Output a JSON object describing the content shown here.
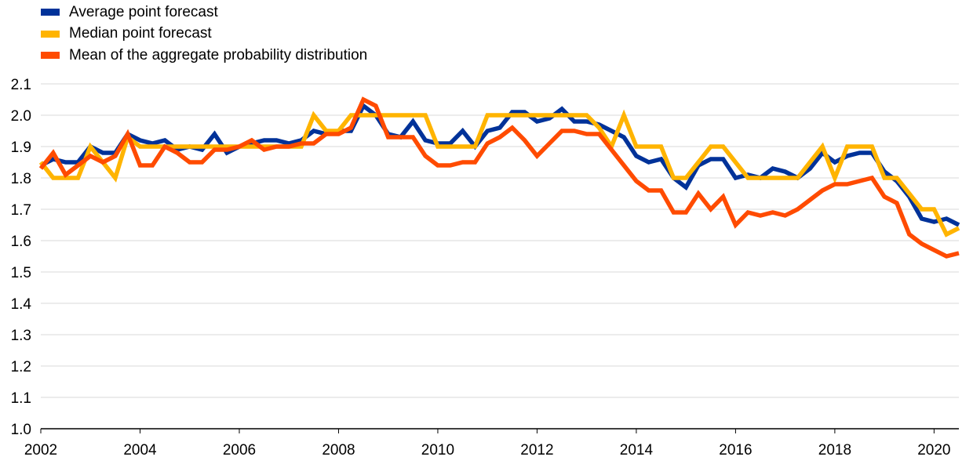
{
  "chart_data": {
    "type": "line",
    "title": "",
    "xlabel": "",
    "ylabel": "",
    "xlim": [
      2002,
      2020.5
    ],
    "ylim": [
      1.0,
      2.1
    ],
    "x_ticks": [
      "2002",
      "2004",
      "2006",
      "2008",
      "2010",
      "2012",
      "2014",
      "2016",
      "2018",
      "2020"
    ],
    "y_ticks": [
      "1.0",
      "1.1",
      "1.2",
      "1.3",
      "1.4",
      "1.5",
      "1.6",
      "1.7",
      "1.8",
      "1.9",
      "2.0",
      "2.1"
    ],
    "grid": "horizontal",
    "legend_position": "top-left",
    "x": [
      2002.0,
      2002.25,
      2002.5,
      2002.75,
      2003.0,
      2003.25,
      2003.5,
      2003.75,
      2004.0,
      2004.25,
      2004.5,
      2004.75,
      2005.0,
      2005.25,
      2005.5,
      2005.75,
      2006.0,
      2006.25,
      2006.5,
      2006.75,
      2007.0,
      2007.25,
      2007.5,
      2007.75,
      2008.0,
      2008.25,
      2008.5,
      2008.75,
      2009.0,
      2009.25,
      2009.5,
      2009.75,
      2010.0,
      2010.25,
      2010.5,
      2010.75,
      2011.0,
      2011.25,
      2011.5,
      2011.75,
      2012.0,
      2012.25,
      2012.5,
      2012.75,
      2013.0,
      2013.25,
      2013.5,
      2013.75,
      2014.0,
      2014.25,
      2014.5,
      2014.75,
      2015.0,
      2015.25,
      2015.5,
      2015.75,
      2016.0,
      2016.25,
      2016.5,
      2016.75,
      2017.0,
      2017.25,
      2017.5,
      2017.75,
      2018.0,
      2018.25,
      2018.5,
      2018.75,
      2019.0,
      2019.25,
      2019.5,
      2019.75,
      2020.0,
      2020.25,
      2020.5
    ],
    "series": [
      {
        "name": "Average point forecast",
        "color": "#003299",
        "values": [
          1.84,
          1.86,
          1.85,
          1.85,
          1.9,
          1.88,
          1.88,
          1.94,
          1.92,
          1.91,
          1.92,
          1.89,
          1.9,
          1.89,
          1.94,
          1.88,
          1.9,
          1.91,
          1.92,
          1.92,
          1.91,
          1.92,
          1.95,
          1.94,
          1.95,
          1.95,
          2.03,
          2.0,
          1.94,
          1.93,
          1.98,
          1.92,
          1.91,
          1.91,
          1.95,
          1.9,
          1.95,
          1.96,
          2.01,
          2.01,
          1.98,
          1.99,
          2.02,
          1.98,
          1.98,
          1.97,
          1.95,
          1.93,
          1.87,
          1.85,
          1.86,
          1.8,
          1.77,
          1.84,
          1.86,
          1.86,
          1.8,
          1.81,
          1.8,
          1.83,
          1.82,
          1.8,
          1.83,
          1.88,
          1.85,
          1.87,
          1.88,
          1.88,
          1.82,
          1.79,
          1.74,
          1.67,
          1.66,
          1.67,
          1.65
        ]
      },
      {
        "name": "Median point forecast",
        "color": "#FFB400",
        "values": [
          1.85,
          1.8,
          1.8,
          1.8,
          1.9,
          1.85,
          1.8,
          1.93,
          1.9,
          1.9,
          1.9,
          1.9,
          1.9,
          1.9,
          1.9,
          1.9,
          1.9,
          1.9,
          1.9,
          1.9,
          1.9,
          1.9,
          2.0,
          1.95,
          1.95,
          2.0,
          2.0,
          2.0,
          2.0,
          2.0,
          2.0,
          2.0,
          1.9,
          1.9,
          1.9,
          1.9,
          2.0,
          2.0,
          2.0,
          2.0,
          2.0,
          2.0,
          2.0,
          2.0,
          2.0,
          1.96,
          1.9,
          2.0,
          1.9,
          1.9,
          1.9,
          1.8,
          1.8,
          1.85,
          1.9,
          1.9,
          1.85,
          1.8,
          1.8,
          1.8,
          1.8,
          1.8,
          1.85,
          1.9,
          1.8,
          1.9,
          1.9,
          1.9,
          1.8,
          1.8,
          1.75,
          1.7,
          1.7,
          1.62,
          1.64
        ]
      },
      {
        "name": "Mean of the aggregate probability distribution",
        "color": "#FF4B00",
        "values": [
          1.83,
          1.88,
          1.81,
          1.84,
          1.87,
          1.85,
          1.87,
          1.94,
          1.84,
          1.84,
          1.9,
          1.88,
          1.85,
          1.85,
          1.89,
          1.89,
          1.9,
          1.92,
          1.89,
          1.9,
          1.9,
          1.91,
          1.91,
          1.94,
          1.94,
          1.96,
          2.05,
          2.03,
          1.93,
          1.93,
          1.93,
          1.87,
          1.84,
          1.84,
          1.85,
          1.85,
          1.91,
          1.93,
          1.96,
          1.92,
          1.87,
          1.91,
          1.95,
          1.95,
          1.94,
          1.94,
          1.89,
          1.84,
          1.79,
          1.76,
          1.76,
          1.69,
          1.69,
          1.75,
          1.7,
          1.74,
          1.65,
          1.69,
          1.68,
          1.69,
          1.68,
          1.7,
          1.73,
          1.76,
          1.78,
          1.78,
          1.79,
          1.8,
          1.74,
          1.72,
          1.62,
          1.59,
          1.57,
          1.55,
          1.56
        ]
      }
    ]
  }
}
